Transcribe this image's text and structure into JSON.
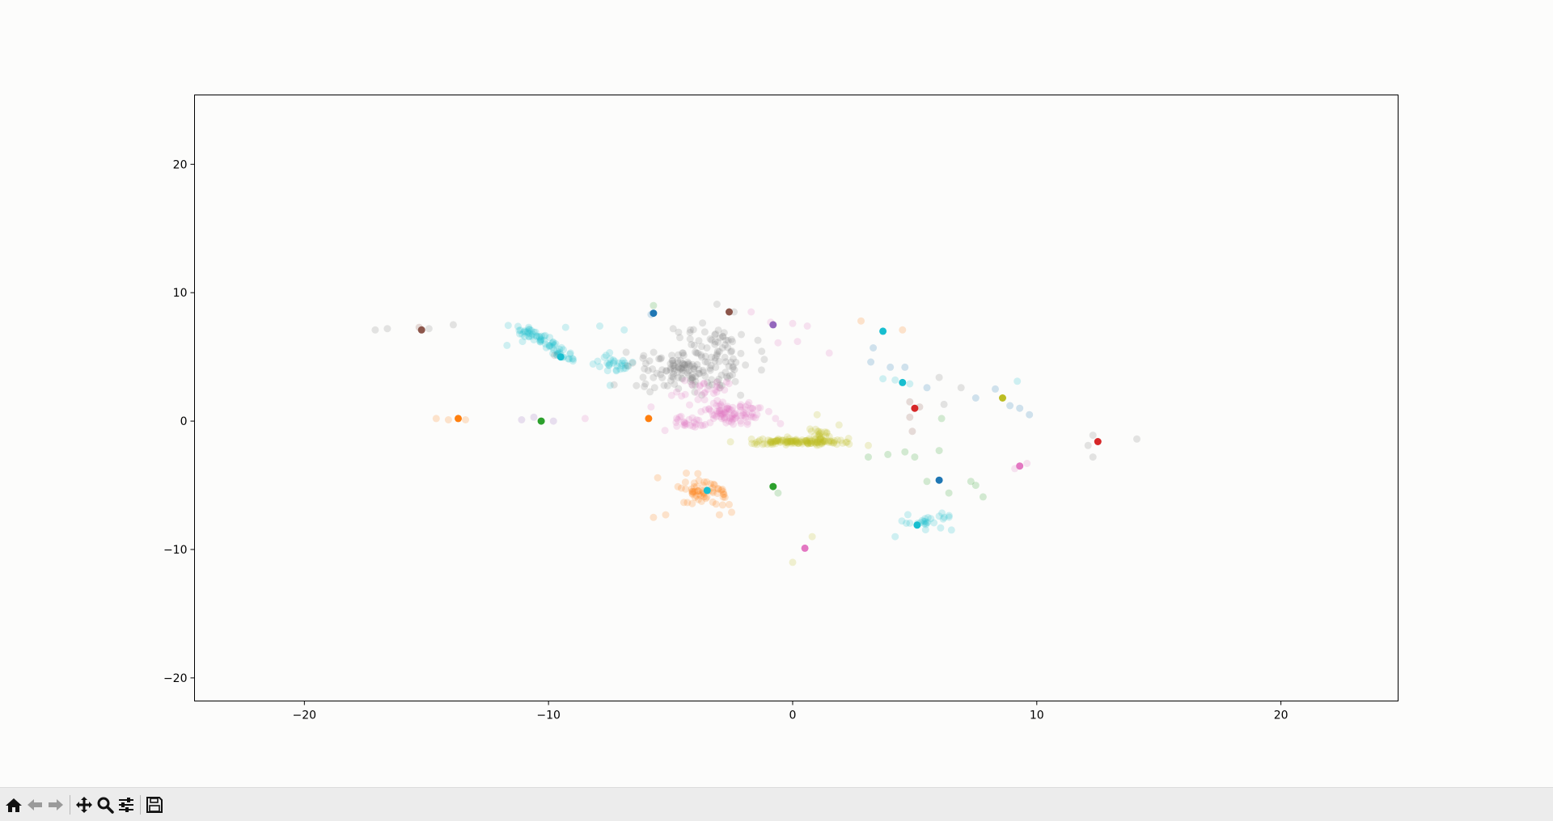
{
  "chart_data": {
    "type": "scatter",
    "title": "",
    "xlabel": "",
    "ylabel": "",
    "xlim": [
      -24.5,
      24.8
    ],
    "ylim": [
      -21.8,
      25.4
    ],
    "xticks": [
      -20,
      -10,
      0,
      10,
      20
    ],
    "yticks": [
      -20,
      -10,
      0,
      10,
      20
    ],
    "xtick_labels": [
      "−20",
      "−10",
      "0",
      "10",
      "20"
    ],
    "ytick_labels": [
      "−20",
      "−10",
      "0",
      "10",
      "20"
    ],
    "grid": false,
    "legend": "none",
    "clusters": [
      {
        "color": "#17becf",
        "cx": -10.5,
        "cy": 6.2,
        "sx": 1.0,
        "sy": 0.6,
        "n": 70,
        "shape": "arc1"
      },
      {
        "color": "#17becf",
        "cx": -7.3,
        "cy": 4.4,
        "sx": 0.5,
        "sy": 0.4,
        "n": 30
      },
      {
        "color": "#7f7f7f",
        "cx": -4.3,
        "cy": 4.0,
        "sx": 1.3,
        "sy": 0.8,
        "n": 150
      },
      {
        "color": "#7f7f7f",
        "cx": -2.9,
        "cy": 6.3,
        "sx": 0.8,
        "sy": 0.5,
        "n": 30
      },
      {
        "color": "#7f7f7f",
        "cx": -4.2,
        "cy": 6.8,
        "sx": 0.3,
        "sy": 0.4,
        "n": 10
      },
      {
        "color": "#e377c2",
        "cx": -2.5,
        "cy": 0.6,
        "sx": 0.6,
        "sy": 0.45,
        "n": 90
      },
      {
        "color": "#e377c2",
        "cx": -4.3,
        "cy": -0.1,
        "sx": 0.4,
        "sy": 0.3,
        "n": 25
      },
      {
        "color": "#e377c2",
        "cx": -3.7,
        "cy": 2.4,
        "sx": 0.5,
        "sy": 0.35,
        "n": 25
      },
      {
        "color": "#bcbd22",
        "cx": 0.2,
        "cy": -1.6,
        "sx": 1.0,
        "sy": 0.12,
        "n": 130
      },
      {
        "color": "#bcbd22",
        "cx": 1.1,
        "cy": -1.0,
        "sx": 0.2,
        "sy": 0.25,
        "n": 20
      },
      {
        "color": "#ff7f0e",
        "cx": -3.6,
        "cy": -5.4,
        "sx": 0.5,
        "sy": 0.45,
        "n": 60
      },
      {
        "color": "#17becf",
        "cx": 5.3,
        "cy": -7.9,
        "sx": 0.7,
        "sy": 0.3,
        "n": 25
      }
    ],
    "scattered": [
      {
        "color": "#7f7f7f",
        "x": -17.1,
        "y": 7.1
      },
      {
        "color": "#7f7f7f",
        "x": -16.6,
        "y": 7.2
      },
      {
        "color": "#8c564b",
        "x": -15.3,
        "y": 7.3
      },
      {
        "color": "#7f7f7f",
        "x": -14.9,
        "y": 7.2
      },
      {
        "color": "#7f7f7f",
        "x": -13.9,
        "y": 7.5
      },
      {
        "color": "#17becf",
        "x": -11.7,
        "y": 5.9
      },
      {
        "color": "#17becf",
        "x": -9.3,
        "y": 7.3
      },
      {
        "color": "#17becf",
        "x": -9.1,
        "y": 5.3
      },
      {
        "color": "#17becf",
        "x": -7.9,
        "y": 7.4
      },
      {
        "color": "#17becf",
        "x": -6.9,
        "y": 7.1
      },
      {
        "color": "#2ca02c",
        "x": -5.7,
        "y": 9.0
      },
      {
        "color": "#1f77b4",
        "x": -5.8,
        "y": 8.3
      },
      {
        "color": "#7f7f7f",
        "x": -3.1,
        "y": 9.1
      },
      {
        "color": "#7f7f7f",
        "x": -2.4,
        "y": 8.5
      },
      {
        "color": "#e377c2",
        "x": -1.7,
        "y": 8.5
      },
      {
        "color": "#e377c2",
        "x": -0.9,
        "y": 7.7
      },
      {
        "color": "#e377c2",
        "x": 0.0,
        "y": 7.6
      },
      {
        "color": "#e377c2",
        "x": 0.6,
        "y": 7.4
      },
      {
        "color": "#e377c2",
        "x": -0.6,
        "y": 6.1
      },
      {
        "color": "#e377c2",
        "x": 0.2,
        "y": 6.2
      },
      {
        "color": "#e377c2",
        "x": 1.5,
        "y": 5.3
      },
      {
        "color": "#ff7f0e",
        "x": -14.6,
        "y": 0.2
      },
      {
        "color": "#ff7f0e",
        "x": -14.1,
        "y": 0.1
      },
      {
        "color": "#ff7f0e",
        "x": -13.4,
        "y": 0.1
      },
      {
        "color": "#9467bd",
        "x": -11.1,
        "y": 0.1
      },
      {
        "color": "#9467bd",
        "x": -10.6,
        "y": 0.3
      },
      {
        "color": "#9467bd",
        "x": -9.8,
        "y": 0.0
      },
      {
        "color": "#e377c2",
        "x": -8.5,
        "y": 0.2
      },
      {
        "color": "#e377c2",
        "x": -5.8,
        "y": 1.1
      },
      {
        "color": "#e377c2",
        "x": -0.5,
        "y": -0.2
      },
      {
        "color": "#e377c2",
        "x": -0.7,
        "y": 0.2
      },
      {
        "color": "#bcbd22",
        "x": 1.0,
        "y": 0.5
      },
      {
        "color": "#bcbd22",
        "x": 1.9,
        "y": -0.3
      },
      {
        "color": "#ff7f0e",
        "x": -5.7,
        "y": -7.5
      },
      {
        "color": "#ff7f0e",
        "x": -5.2,
        "y": -7.3
      },
      {
        "color": "#ff7f0e",
        "x": -3.0,
        "y": -7.3
      },
      {
        "color": "#ff7f0e",
        "x": -2.5,
        "y": -7.1
      },
      {
        "color": "#ff7f0e",
        "x": -2.6,
        "y": -6.5
      },
      {
        "color": "#2ca02c",
        "x": -0.6,
        "y": -5.6
      },
      {
        "color": "#bcbd22",
        "x": 0.8,
        "y": -9.0
      },
      {
        "color": "#bcbd22",
        "x": 0.0,
        "y": -11.0
      },
      {
        "color": "#ff7f0e",
        "x": 2.8,
        "y": 7.8
      },
      {
        "color": "#ff7f0e",
        "x": 4.5,
        "y": 7.1
      },
      {
        "color": "#1f77b4",
        "x": 3.3,
        "y": 5.7
      },
      {
        "color": "#1f77b4",
        "x": 3.2,
        "y": 4.6
      },
      {
        "color": "#1f77b4",
        "x": 4.0,
        "y": 4.2
      },
      {
        "color": "#1f77b4",
        "x": 4.6,
        "y": 4.2
      },
      {
        "color": "#17becf",
        "x": 3.7,
        "y": 3.3
      },
      {
        "color": "#17becf",
        "x": 4.2,
        "y": 3.2
      },
      {
        "color": "#17becf",
        "x": 4.8,
        "y": 2.9
      },
      {
        "color": "#1f77b4",
        "x": 5.5,
        "y": 2.6
      },
      {
        "color": "#7f7f7f",
        "x": 6.0,
        "y": 3.4
      },
      {
        "color": "#7f7f7f",
        "x": 6.2,
        "y": 1.3
      },
      {
        "color": "#8c564b",
        "x": 4.8,
        "y": 1.5
      },
      {
        "color": "#8c564b",
        "x": 5.2,
        "y": 1.1
      },
      {
        "color": "#8c564b",
        "x": 4.8,
        "y": 0.3
      },
      {
        "color": "#8c564b",
        "x": 4.9,
        "y": -0.8
      },
      {
        "color": "#2ca02c",
        "x": 6.1,
        "y": 0.2
      },
      {
        "color": "#2ca02c",
        "x": 3.1,
        "y": -2.8
      },
      {
        "color": "#2ca02c",
        "x": 3.9,
        "y": -2.6
      },
      {
        "color": "#2ca02c",
        "x": 4.6,
        "y": -2.4
      },
      {
        "color": "#2ca02c",
        "x": 5.0,
        "y": -2.8
      },
      {
        "color": "#2ca02c",
        "x": 6.0,
        "y": -2.3
      },
      {
        "color": "#2ca02c",
        "x": 5.5,
        "y": -4.7
      },
      {
        "color": "#2ca02c",
        "x": 7.3,
        "y": -4.7
      },
      {
        "color": "#2ca02c",
        "x": 7.5,
        "y": -5.0
      },
      {
        "color": "#2ca02c",
        "x": 6.4,
        "y": -5.6
      },
      {
        "color": "#2ca02c",
        "x": 7.8,
        "y": -5.9
      },
      {
        "color": "#7f7f7f",
        "x": 6.9,
        "y": 2.6
      },
      {
        "color": "#1f77b4",
        "x": 7.5,
        "y": 1.8
      },
      {
        "color": "#1f77b4",
        "x": 8.3,
        "y": 2.5
      },
      {
        "color": "#1f77b4",
        "x": 8.9,
        "y": 1.2
      },
      {
        "color": "#1f77b4",
        "x": 9.3,
        "y": 1.0
      },
      {
        "color": "#1f77b4",
        "x": 9.7,
        "y": 0.5
      },
      {
        "color": "#17becf",
        "x": 9.2,
        "y": 3.1
      },
      {
        "color": "#e377c2",
        "x": 9.1,
        "y": -3.7
      },
      {
        "color": "#e377c2",
        "x": 9.6,
        "y": -3.3
      },
      {
        "color": "#7f7f7f",
        "x": 12.3,
        "y": -1.1
      },
      {
        "color": "#7f7f7f",
        "x": 12.1,
        "y": -1.9
      },
      {
        "color": "#7f7f7f",
        "x": 12.3,
        "y": -2.8
      },
      {
        "color": "#7f7f7f",
        "x": 14.1,
        "y": -1.4
      },
      {
        "color": "#bcbd22",
        "x": 3.1,
        "y": -1.9
      },
      {
        "color": "#17becf",
        "x": 4.2,
        "y": -9.0
      },
      {
        "color": "#17becf",
        "x": 6.0,
        "y": -7.4
      }
    ],
    "centroids": [
      {
        "color": "#8c564b",
        "x": -15.2,
        "y": 7.1
      },
      {
        "color": "#17becf",
        "x": -9.5,
        "y": 5.0
      },
      {
        "color": "#1f77b4",
        "x": -5.7,
        "y": 8.4
      },
      {
        "color": "#8c564b",
        "x": -2.6,
        "y": 8.5
      },
      {
        "color": "#9467bd",
        "x": -0.8,
        "y": 7.5
      },
      {
        "color": "#ff7f0e",
        "x": -13.7,
        "y": 0.2
      },
      {
        "color": "#2ca02c",
        "x": -10.3,
        "y": 0.0
      },
      {
        "color": "#ff7f0e",
        "x": -5.9,
        "y": 0.2
      },
      {
        "color": "#17becf",
        "x": 3.7,
        "y": 7.0
      },
      {
        "color": "#17becf",
        "x": 4.5,
        "y": 3.0
      },
      {
        "color": "#d62728",
        "x": 5.0,
        "y": 1.0
      },
      {
        "color": "#bcbd22",
        "x": 8.6,
        "y": 1.8
      },
      {
        "color": "#d62728",
        "x": 12.5,
        "y": -1.6
      },
      {
        "color": "#17becf",
        "x": -3.5,
        "y": -5.4
      },
      {
        "color": "#2ca02c",
        "x": -0.8,
        "y": -5.1
      },
      {
        "color": "#1f77b4",
        "x": 6.0,
        "y": -4.6
      },
      {
        "color": "#e377c2",
        "x": 9.3,
        "y": -3.5
      },
      {
        "color": "#17becf",
        "x": 5.1,
        "y": -8.1
      },
      {
        "color": "#e377c2",
        "x": 0.5,
        "y": -9.9
      }
    ]
  },
  "toolbar": {
    "buttons": [
      {
        "name": "home-button",
        "icon": "home-icon"
      },
      {
        "name": "back-button",
        "icon": "arrow-left-icon"
      },
      {
        "name": "forward-button",
        "icon": "arrow-right-icon"
      },
      {
        "name": "pan-button",
        "icon": "move-icon"
      },
      {
        "name": "zoom-button",
        "icon": "magnifier-icon"
      },
      {
        "name": "configure-subplots-button",
        "icon": "sliders-icon"
      },
      {
        "name": "save-button",
        "icon": "floppy-disk-icon"
      }
    ]
  }
}
